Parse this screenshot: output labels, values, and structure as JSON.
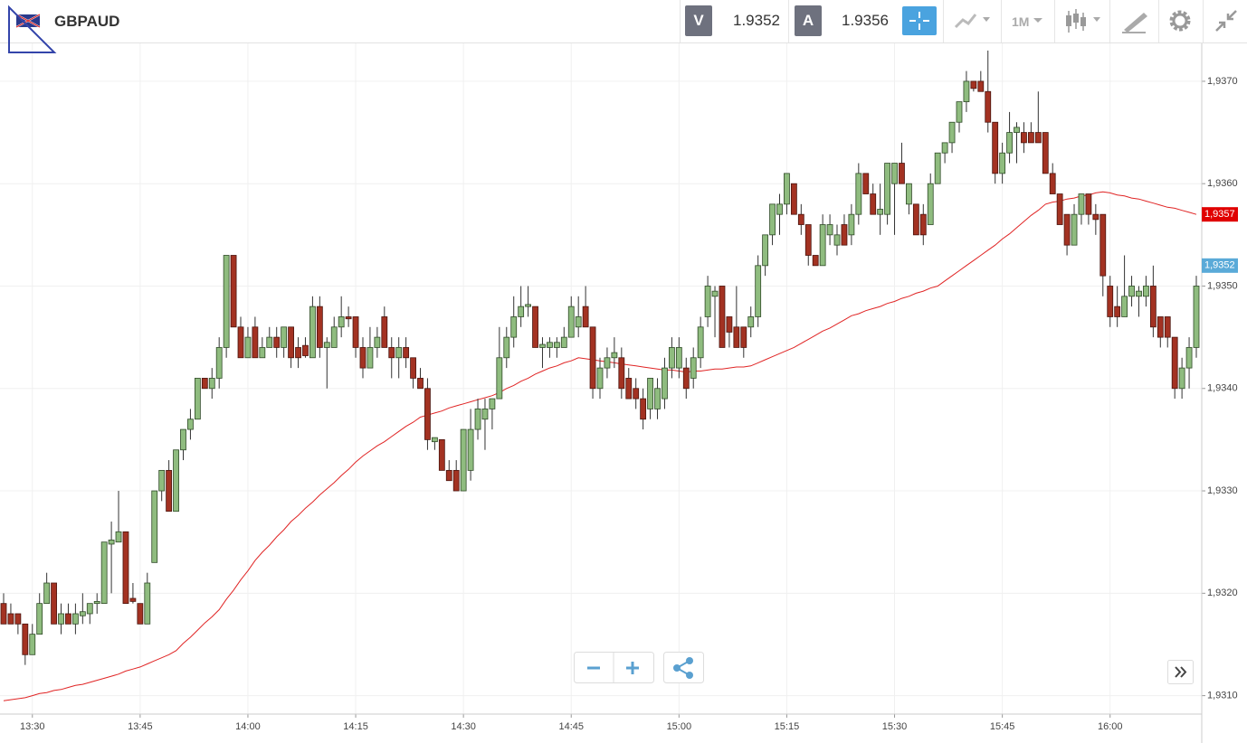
{
  "header": {
    "symbol": "GBPAUD",
    "bid_label": "V",
    "bid": "1.9352",
    "ask_label": "A",
    "ask": "1.9356",
    "timeframe": "1M"
  },
  "chart_data": {
    "type": "candlestick",
    "categories": [
      null,
      null,
      null,
      null,
      "13:30",
      null,
      null,
      null,
      null,
      null,
      null,
      null,
      null,
      null,
      null,
      null,
      null,
      null,
      null,
      "13:45",
      null,
      null,
      null,
      null,
      null,
      null,
      null,
      null,
      null,
      null,
      null,
      null,
      null,
      null,
      "14:00",
      null,
      null,
      null,
      null,
      null,
      null,
      null,
      null,
      null,
      null,
      null,
      null,
      null,
      null,
      "14:15",
      null,
      null,
      null,
      null,
      null,
      null,
      null,
      null,
      null,
      null,
      null,
      null,
      null,
      null,
      "14:30",
      null,
      null,
      null,
      null,
      null,
      null,
      null,
      null,
      null,
      null,
      null,
      null,
      null,
      null,
      "14:45",
      null,
      null,
      null,
      null,
      null,
      null,
      null,
      null,
      null,
      null,
      null,
      null,
      null,
      null,
      "15:00",
      null,
      null,
      null,
      null,
      null,
      null,
      null,
      null,
      null,
      null,
      null,
      null,
      null,
      null,
      "15:15",
      null,
      null,
      null,
      null,
      null,
      null,
      null,
      null,
      null,
      null,
      null,
      null,
      null,
      null,
      "15:30",
      null,
      null,
      null,
      null,
      null,
      null,
      null,
      null,
      null,
      null,
      null,
      null,
      null,
      null,
      "15:45",
      null,
      null,
      null,
      null,
      null,
      null,
      null,
      null,
      null,
      null,
      null,
      null,
      null,
      null,
      "16:00",
      null,
      null,
      null,
      null,
      null,
      null,
      null,
      null,
      null,
      null,
      null,
      null
    ],
    "open": [
      1.9319,
      1.9318,
      1.9318,
      1.9317,
      1.9314,
      1.9316,
      1.9319,
      1.9321,
      1.9317,
      1.9318,
      1.9317,
      1.93178,
      1.9318,
      1.9319,
      1.9319,
      1.93248,
      1.9325,
      1.9326,
      1.93195,
      1.9319,
      1.9317,
      1.9323,
      1.933,
      1.9332,
      1.9328,
      1.9334,
      1.9336,
      1.9337,
      1.9341,
      1.934,
      1.9341,
      1.9344,
      1.9353,
      1.9346,
      1.9343,
      1.9346,
      1.9343,
      1.9344,
      1.9345,
      1.9344,
      1.9346,
      1.9344,
      1.93442,
      1.9343,
      1.9348,
      1.9344,
      1.9344,
      1.9346,
      1.9347,
      1.9347,
      1.9344,
      1.9342,
      1.9344,
      1.9347,
      1.9344,
      1.9343,
      1.9344,
      1.9343,
      1.9341,
      1.934,
      1.93348,
      1.9335,
      1.9332,
      1.9332,
      1.933,
      1.9332,
      1.9336,
      1.9337,
      1.9338,
      1.9339,
      1.9343,
      1.9345,
      1.9347,
      1.9348,
      1.9348,
      1.9344,
      1.9344,
      1.9344,
      1.9344,
      1.9345,
      1.9346,
      1.9348,
      1.9346,
      1.934,
      1.9342,
      1.9343,
      1.9343,
      1.9341,
      1.934,
      1.9339,
      1.9338,
      1.9338,
      1.9339,
      1.9342,
      1.9342,
      1.9342,
      1.9341,
      1.9343,
      1.9347,
      1.9349,
      1.935,
      1.9347,
      1.9346,
      1.9346,
      1.9346,
      1.9347,
      1.9352,
      1.9355,
      1.9357,
      1.9358,
      1.936,
      1.9357,
      1.9356,
      1.9353,
      1.9352,
      1.9355,
      1.9354,
      1.9356,
      1.9355,
      1.9357,
      1.9361,
      1.9359,
      1.9357,
      1.9357,
      1.936,
      1.9362,
      1.9358,
      1.9358,
      1.9357,
      1.9356,
      1.936,
      1.9363,
      1.9364,
      1.9366,
      1.9368,
      1.937,
      1.937,
      1.9369,
      1.9366,
      1.9361,
      1.9363,
      1.9365,
      1.9365,
      1.9365,
      1.9365,
      1.9365,
      1.9361,
      1.9359,
      1.9357,
      1.9354,
      1.9357,
      1.9359,
      1.9357,
      1.9357,
      1.935,
      1.9348,
      1.9347,
      1.9349,
      1.9349,
      1.9349,
      1.935,
      1.9347,
      1.9347,
      1.9345,
      1.934,
      1.9342,
      1.9344
    ],
    "high": [
      1.932,
      1.9319,
      1.9318,
      1.9317,
      1.9317,
      1.932,
      1.9322,
      1.9321,
      1.9319,
      1.9319,
      1.9319,
      1.932,
      1.9319,
      1.932,
      1.9325,
      1.9327,
      1.933,
      1.9326,
      1.9321,
      1.9319,
      1.9322,
      1.933,
      1.9332,
      1.9333,
      1.9334,
      1.9336,
      1.9338,
      1.9341,
      1.9341,
      1.9342,
      1.9345,
      1.9353,
      1.9353,
      1.9347,
      1.9346,
      1.9347,
      1.9345,
      1.9346,
      1.9346,
      1.9346,
      1.9346,
      1.9345,
      1.9345,
      1.9349,
      1.9349,
      1.9345,
      1.9347,
      1.9349,
      1.9348,
      1.9347,
      1.9345,
      1.9346,
      1.9346,
      1.9348,
      1.9345,
      1.9345,
      1.9345,
      1.9343,
      1.9342,
      1.9341,
      1.9335,
      1.9335,
      1.9333,
      1.9333,
      1.9336,
      1.9338,
      1.9339,
      1.9339,
      1.9339,
      1.9346,
      1.9346,
      1.9349,
      1.935,
      1.935,
      1.9348,
      1.9345,
      1.9345,
      1.9345,
      1.9346,
      1.9349,
      1.9349,
      1.935,
      1.9346,
      1.9343,
      1.9344,
      1.9345,
      1.9344,
      1.9342,
      1.9341,
      1.934,
      1.9341,
      1.9341,
      1.9343,
      1.9345,
      1.9345,
      1.9343,
      1.9344,
      1.9347,
      1.9351,
      1.935,
      1.935,
      1.9347,
      1.935,
      1.9346,
      1.9348,
      1.9353,
      1.9355,
      1.9358,
      1.9359,
      1.9361,
      1.936,
      1.9358,
      1.9356,
      1.9353,
      1.9357,
      1.9357,
      1.9356,
      1.9357,
      1.9358,
      1.9362,
      1.9361,
      1.936,
      1.936,
      1.9362,
      1.9362,
      1.9364,
      1.936,
      1.9358,
      1.9358,
      1.9361,
      1.9363,
      1.9364,
      1.9366,
      1.9368,
      1.9371,
      1.937,
      1.9371,
      1.9373,
      1.9366,
      1.9364,
      1.9367,
      1.9366,
      1.9366,
      1.9366,
      1.9369,
      1.9365,
      1.9362,
      1.9359,
      1.9357,
      1.9358,
      1.9359,
      1.9359,
      1.9358,
      1.9357,
      1.9351,
      1.935,
      1.9353,
      1.9351,
      1.935,
      1.9351,
      1.9352,
      1.9347,
      1.9347,
      1.9345,
      1.9343,
      1.9345,
      1.9351
    ],
    "low": [
      1.9317,
      1.9317,
      1.9316,
      1.9313,
      1.9314,
      1.9316,
      1.9319,
      1.9317,
      1.9316,
      1.9317,
      1.9316,
      1.9317,
      1.9317,
      1.9318,
      1.9319,
      1.932,
      1.9325,
      1.9319,
      1.9319,
      1.9317,
      1.9317,
      1.9323,
      1.9329,
      1.9328,
      1.9328,
      1.9333,
      1.9335,
      1.9337,
      1.934,
      1.9339,
      1.934,
      1.9343,
      1.9346,
      1.9343,
      1.9343,
      1.9343,
      1.9343,
      1.9344,
      1.9343,
      1.9343,
      1.9342,
      1.9342,
      1.9343,
      1.9343,
      1.9343,
      1.934,
      1.9344,
      1.9345,
      1.9346,
      1.9343,
      1.9341,
      1.9342,
      1.9343,
      1.9344,
      1.9341,
      1.9341,
      1.9342,
      1.934,
      1.934,
      1.9334,
      1.9334,
      1.9332,
      1.9331,
      1.933,
      1.933,
      1.9331,
      1.9335,
      1.9334,
      1.9336,
      1.9339,
      1.9342,
      1.9344,
      1.9346,
      1.9347,
      1.9344,
      1.9342,
      1.9343,
      1.9343,
      1.9344,
      1.9345,
      1.9345,
      1.9346,
      1.9339,
      1.9339,
      1.9341,
      1.9342,
      1.9339,
      1.9339,
      1.9338,
      1.9336,
      1.9337,
      1.9337,
      1.9338,
      1.9341,
      1.9341,
      1.9339,
      1.934,
      1.9342,
      1.9346,
      1.9345,
      1.9344,
      1.9344,
      1.9344,
      1.9343,
      1.9345,
      1.9346,
      1.9351,
      1.9354,
      1.9355,
      1.9357,
      1.9357,
      1.9355,
      1.9352,
      1.9352,
      1.9352,
      1.9354,
      1.9353,
      1.9354,
      1.9354,
      1.9356,
      1.9359,
      1.9357,
      1.9355,
      1.9356,
      1.9355,
      1.936,
      1.9357,
      1.9355,
      1.9354,
      1.9356,
      1.936,
      1.9362,
      1.9363,
      1.9365,
      1.9367,
      1.9369,
      1.9369,
      1.9365,
      1.936,
      1.936,
      1.9362,
      1.9362,
      1.9363,
      1.9364,
      1.9364,
      1.9361,
      1.9359,
      1.9356,
      1.9353,
      1.9354,
      1.9356,
      1.9356,
      1.9355,
      1.9349,
      1.9346,
      1.9346,
      1.9347,
      1.9348,
      1.9347,
      1.9348,
      1.9345,
      1.9344,
      1.9344,
      1.9339,
      1.9339,
      1.934,
      1.9343
    ],
    "close": [
      1.9317,
      1.9317,
      1.9317,
      1.9314,
      1.9316,
      1.9319,
      1.9321,
      1.9317,
      1.9318,
      1.9317,
      1.9318,
      1.93182,
      1.9319,
      1.93192,
      1.9325,
      1.93252,
      1.9326,
      1.9319,
      1.93192,
      1.9317,
      1.9321,
      1.933,
      1.9332,
      1.9328,
      1.9334,
      1.9336,
      1.9337,
      1.9341,
      1.934,
      1.9341,
      1.9344,
      1.9353,
      1.9346,
      1.9343,
      1.9345,
      1.9343,
      1.9344,
      1.9345,
      1.9344,
      1.9346,
      1.9343,
      1.9343,
      1.93432,
      1.9348,
      1.9344,
      1.93445,
      1.9346,
      1.9347,
      1.93468,
      1.9344,
      1.9342,
      1.9344,
      1.9345,
      1.9344,
      1.9343,
      1.9344,
      1.9343,
      1.9341,
      1.934,
      1.9335,
      1.93352,
      1.9332,
      1.9331,
      1.933,
      1.9336,
      1.9336,
      1.9338,
      1.9338,
      1.9339,
      1.9343,
      1.9345,
      1.9347,
      1.9348,
      1.93482,
      1.9344,
      1.93443,
      1.93445,
      1.93445,
      1.9345,
      1.9348,
      1.9347,
      1.9346,
      1.934,
      1.9342,
      1.9343,
      1.93435,
      1.934,
      1.9339,
      1.9339,
      1.9337,
      1.9341,
      1.934,
      1.9342,
      1.9344,
      1.9344,
      1.934,
      1.9343,
      1.9346,
      1.935,
      1.93495,
      1.9344,
      1.93455,
      1.9344,
      1.9344,
      1.9347,
      1.9352,
      1.9355,
      1.9358,
      1.9358,
      1.9361,
      1.9357,
      1.9356,
      1.9353,
      1.9352,
      1.9356,
      1.9356,
      1.9355,
      1.9354,
      1.9357,
      1.9361,
      1.9359,
      1.9357,
      1.93575,
      1.9362,
      1.9362,
      1.936,
      1.936,
      1.9355,
      1.9355,
      1.936,
      1.9363,
      1.9364,
      1.9366,
      1.9368,
      1.937,
      1.93693,
      1.9369,
      1.9366,
      1.9361,
      1.9363,
      1.9365,
      1.93655,
      1.9364,
      1.9364,
      1.9364,
      1.9361,
      1.9359,
      1.9356,
      1.9354,
      1.9357,
      1.9359,
      1.9357,
      1.93565,
      1.9351,
      1.9347,
      1.9347,
      1.9349,
      1.935,
      1.93495,
      1.935,
      1.9346,
      1.9345,
      1.9345,
      1.934,
      1.9342,
      1.9344,
      1.935
    ],
    "up_color": "#8fbc7f",
    "down_color": "#a33222",
    "ma": {
      "color": "#e02424",
      "values": [
        1.93095,
        1.93096,
        1.93097,
        1.93098,
        1.931,
        1.93102,
        1.93103,
        1.93105,
        1.93106,
        1.93108,
        1.9311,
        1.93111,
        1.93113,
        1.93115,
        1.93117,
        1.93119,
        1.93121,
        1.93124,
        1.93126,
        1.93128,
        1.93131,
        1.93134,
        1.93137,
        1.9314,
        1.93144,
        1.93151,
        1.93157,
        1.93164,
        1.93171,
        1.93177,
        1.93184,
        1.93194,
        1.93203,
        1.93213,
        1.93222,
        1.93232,
        1.9324,
        1.93247,
        1.93255,
        1.93262,
        1.9327,
        1.93276,
        1.93283,
        1.93289,
        1.93296,
        1.93302,
        1.93308,
        1.93315,
        1.93321,
        1.93328,
        1.93334,
        1.93339,
        1.93344,
        1.93348,
        1.93353,
        1.93358,
        1.93363,
        1.93367,
        1.93372,
        1.93374,
        1.93376,
        1.93378,
        1.93381,
        1.93383,
        1.93385,
        1.93387,
        1.93389,
        1.93391,
        1.93393,
        1.93396,
        1.934,
        1.93403,
        1.93407,
        1.9341,
        1.93414,
        1.93417,
        1.9342,
        1.93422,
        1.93425,
        1.93427,
        1.9343,
        1.93429,
        1.93428,
        1.93427,
        1.93426,
        1.93425,
        1.93424,
        1.93423,
        1.93422,
        1.93421,
        1.9342,
        1.93419,
        1.93418,
        1.93418,
        1.93417,
        1.93416,
        1.93417,
        1.93417,
        1.93418,
        1.93419,
        1.93419,
        1.9342,
        1.93421,
        1.93421,
        1.93422,
        1.93425,
        1.93428,
        1.93431,
        1.93434,
        1.93437,
        1.9344,
        1.93444,
        1.93448,
        1.93452,
        1.93456,
        1.93459,
        1.93463,
        1.93467,
        1.93471,
        1.93473,
        1.93476,
        1.93478,
        1.9348,
        1.93483,
        1.93485,
        1.93488,
        1.9349,
        1.93493,
        1.93495,
        1.93498,
        1.935,
        1.93505,
        1.9351,
        1.93515,
        1.9352,
        1.93525,
        1.9353,
        1.93535,
        1.9354,
        1.93546,
        1.93551,
        1.93557,
        1.93563,
        1.93569,
        1.93574,
        1.9358,
        1.93582,
        1.93583,
        1.93585,
        1.93586,
        1.93588,
        1.93589,
        1.93591,
        1.93592,
        1.93591,
        1.93589,
        1.93588,
        1.93586,
        1.93585,
        1.93583,
        1.93581,
        1.93579,
        1.93577,
        1.93576,
        1.93574,
        1.93572,
        1.9357
      ]
    },
    "ylim": [
      1.93082,
      1.93737
    ],
    "yticks": [
      {
        "value": 1.931,
        "label": "1,9310"
      },
      {
        "value": 1.932,
        "label": "1,9320"
      },
      {
        "value": 1.933,
        "label": "1,9330"
      },
      {
        "value": 1.934,
        "label": "1,9340"
      },
      {
        "value": 1.935,
        "label": "1,9350"
      },
      {
        "value": 1.936,
        "label": "1,9360"
      },
      {
        "value": 1.937,
        "label": "1,9370"
      }
    ],
    "price_tags": [
      {
        "value": 1.9357,
        "label": "1,9357",
        "color": "#e00000"
      },
      {
        "value": 1.9352,
        "label": "1,9352",
        "color": "#5aaad8"
      }
    ],
    "grid": true
  }
}
